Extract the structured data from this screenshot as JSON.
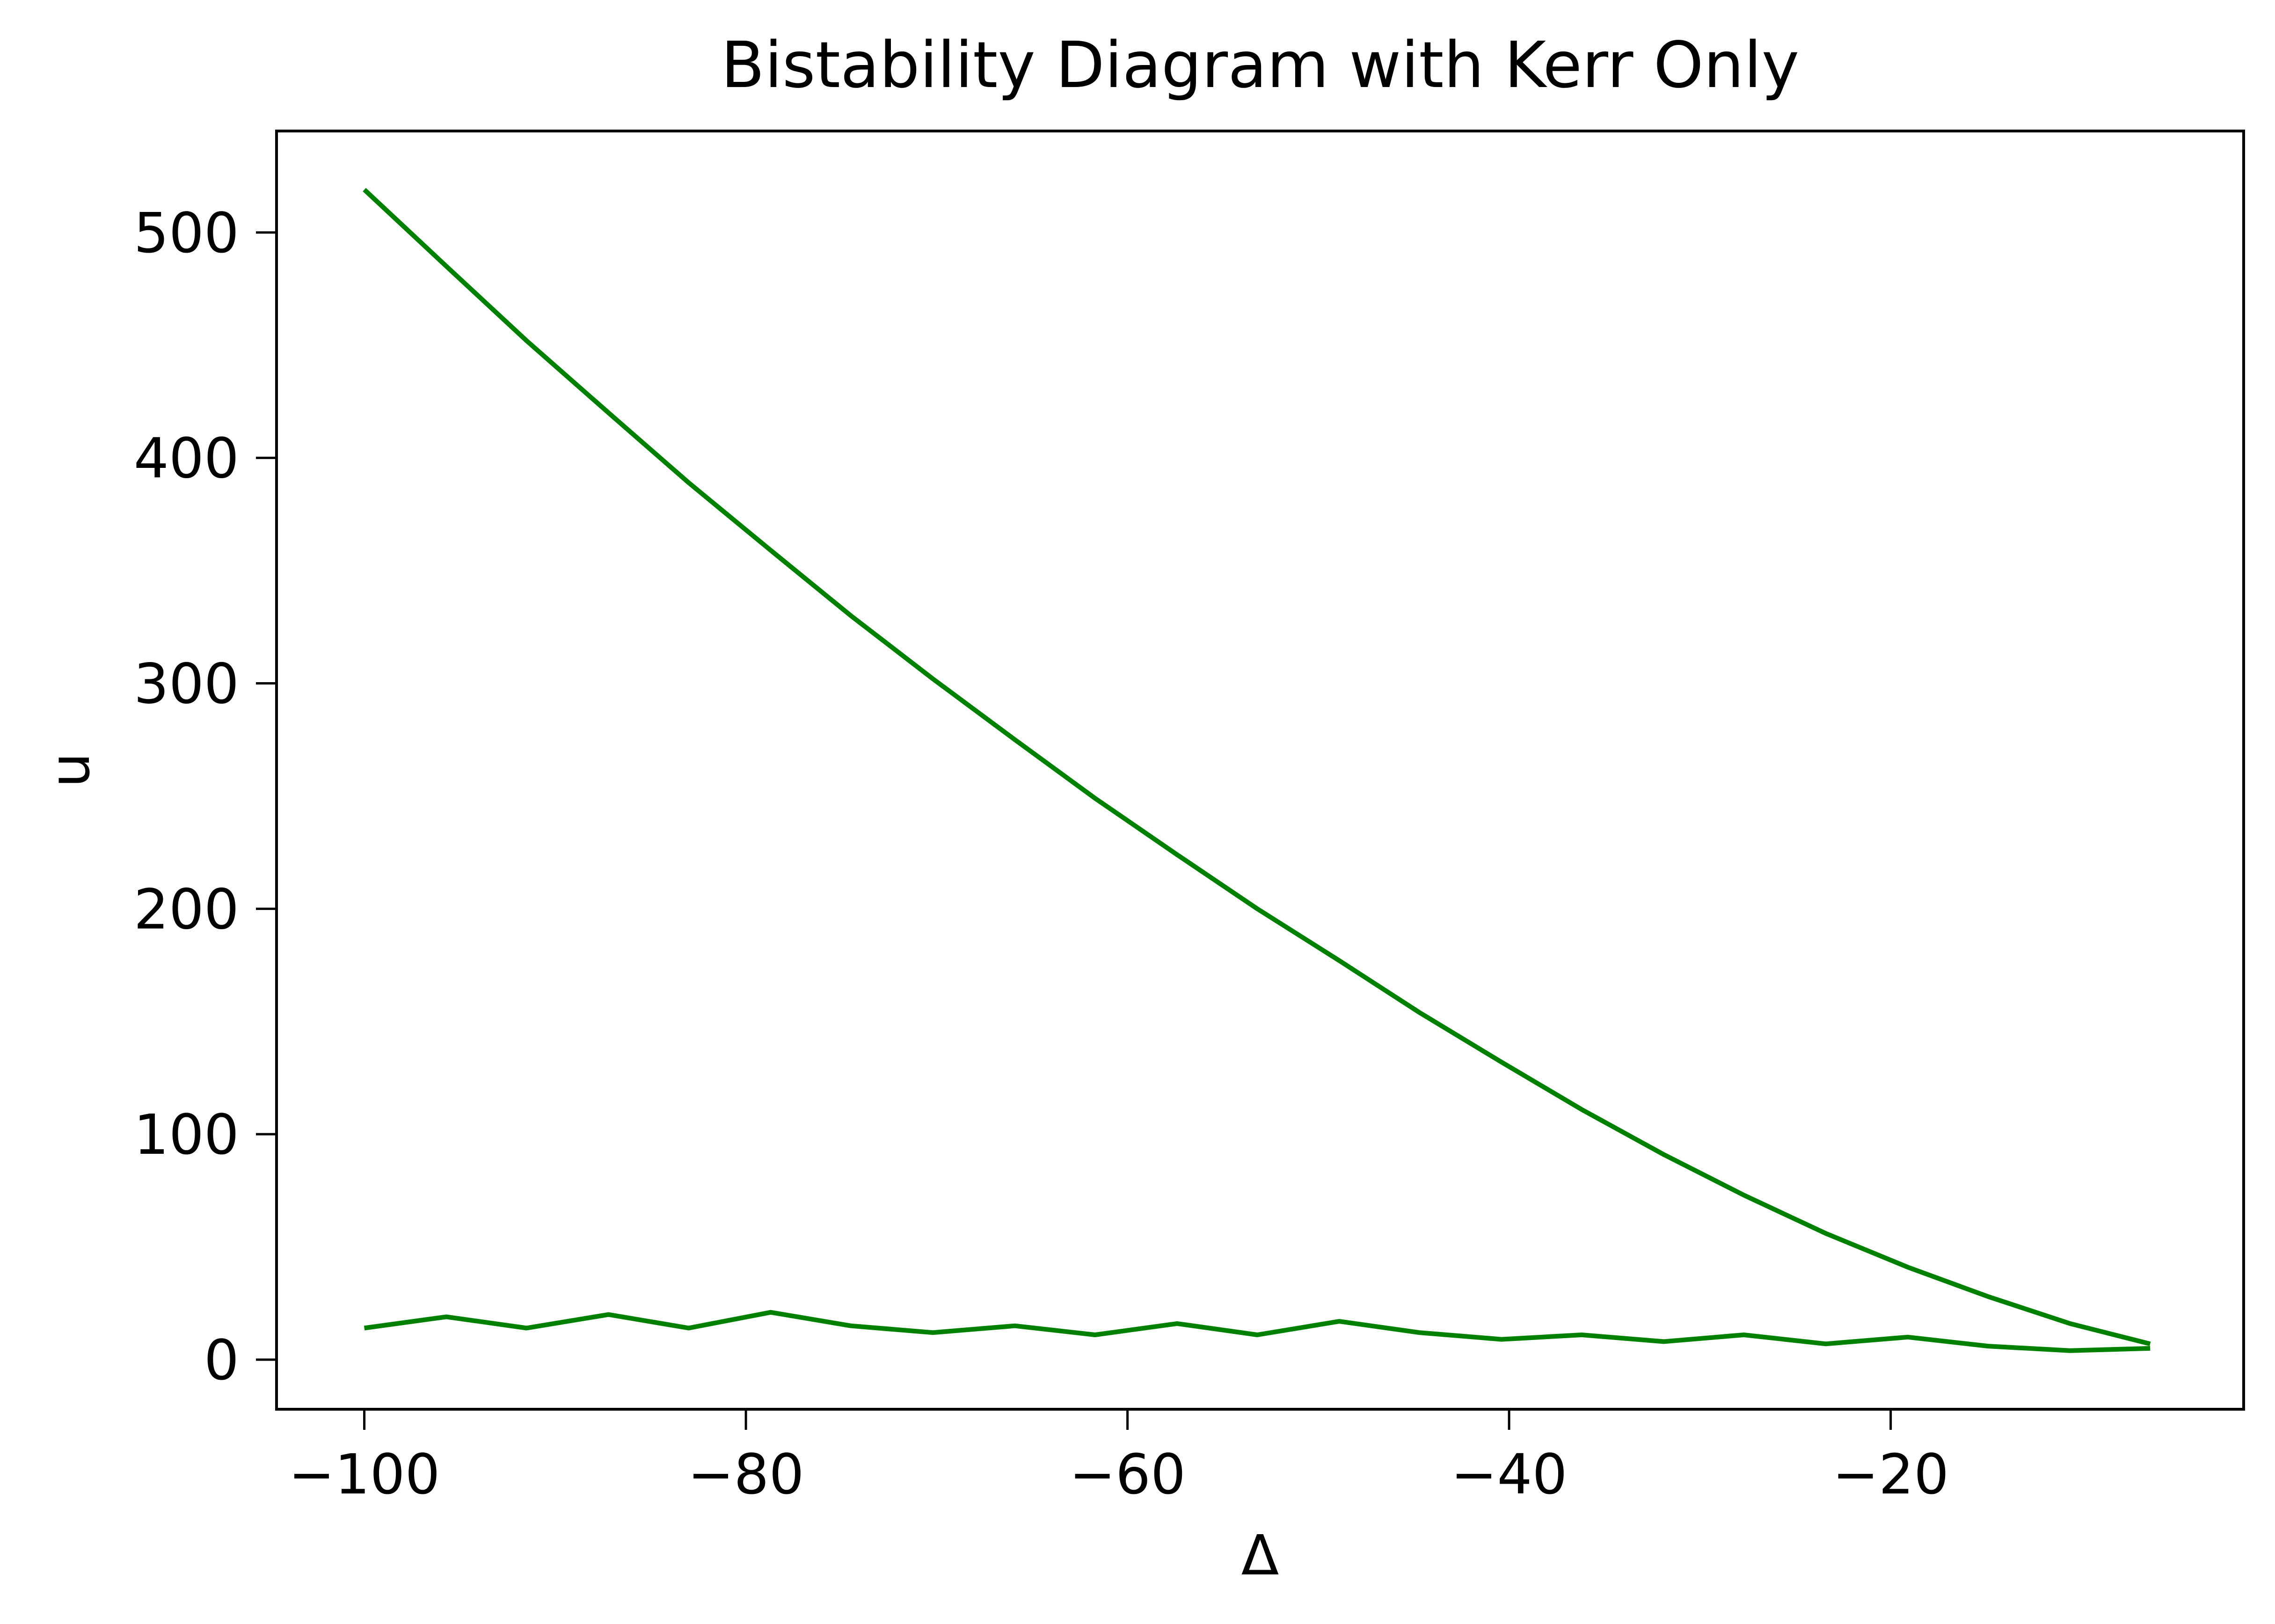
{
  "chart_data": {
    "type": "line",
    "title": "Bistability Diagram with Kerr Only",
    "xlabel": "Δ",
    "ylabel": "u",
    "xlim": [
      -104.6,
      -1.5
    ],
    "ylim": [
      -22,
      545
    ],
    "x_ticks": [
      {
        "value": -100,
        "label": "−100"
      },
      {
        "value": -80,
        "label": "−80"
      },
      {
        "value": -60,
        "label": "−60"
      },
      {
        "value": -40,
        "label": "−40"
      },
      {
        "value": -20,
        "label": "−20"
      }
    ],
    "y_ticks": [
      {
        "value": 0,
        "label": "0"
      },
      {
        "value": 100,
        "label": "100"
      },
      {
        "value": 200,
        "label": "200"
      },
      {
        "value": 300,
        "label": "300"
      },
      {
        "value": 400,
        "label": "400"
      },
      {
        "value": 500,
        "label": "500"
      }
    ],
    "grid": false,
    "legend": "none",
    "series": [
      {
        "color": "#008000",
        "x": [
          -100,
          -95.7,
          -91.5,
          -87.2,
          -83.0,
          -78.7,
          -74.5,
          -70.2,
          -65.9,
          -61.7,
          -57.4,
          -53.2,
          -48.9,
          -44.7,
          -40.4,
          -36.2,
          -31.9,
          -27.7,
          -23.4,
          -19.1,
          -14.9,
          -10.6,
          -6.4
        ],
        "y": [
          519,
          485,
          452,
          420,
          389,
          359,
          330,
          302,
          275,
          249,
          224,
          200,
          177,
          154,
          132,
          111,
          91,
          73,
          56,
          41,
          28,
          16,
          7
        ]
      },
      {
        "color": "#008000",
        "x": [
          -100,
          -95.7,
          -91.5,
          -87.2,
          -83.0,
          -78.7,
          -74.5,
          -70.2,
          -65.9,
          -61.7,
          -57.4,
          -53.2,
          -48.9,
          -44.7,
          -40.4,
          -36.2,
          -31.9,
          -27.7,
          -23.4,
          -19.1,
          -14.9,
          -10.6,
          -6.4
        ],
        "y": [
          14,
          19,
          14,
          20,
          14,
          21,
          15,
          12,
          15,
          11,
          16,
          11,
          17,
          12,
          9,
          11,
          8,
          11,
          7,
          10,
          6,
          4,
          5
        ]
      }
    ]
  }
}
